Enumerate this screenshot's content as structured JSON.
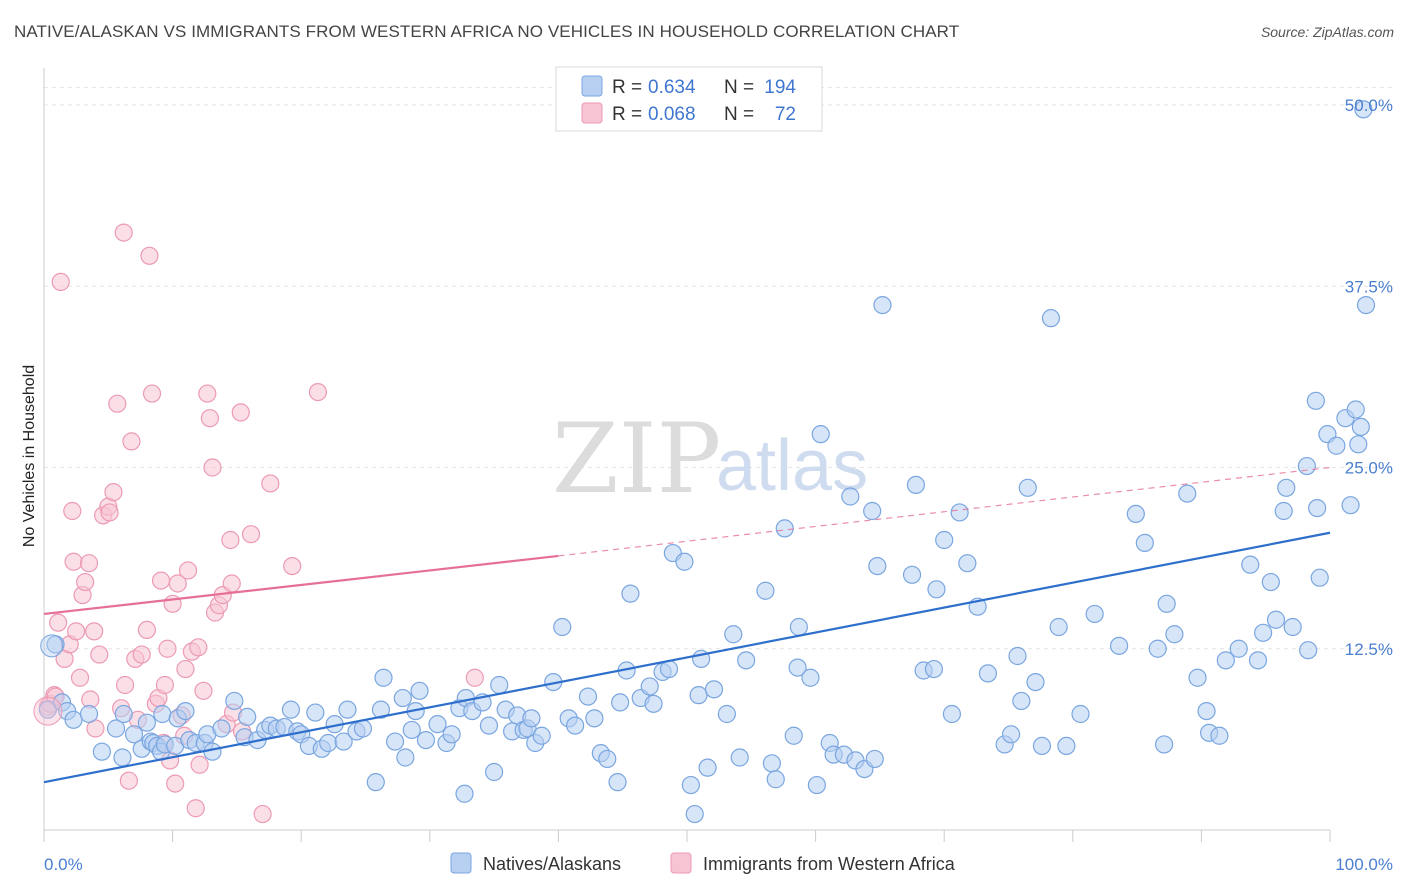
{
  "title": "NATIVE/ALASKAN VS IMMIGRANTS FROM WESTERN AFRICA NO VEHICLES IN HOUSEHOLD CORRELATION CHART",
  "source": "Source: ZipAtlas.com",
  "watermark": {
    "zip": "ZIP",
    "atlas": "atlas"
  },
  "legend": {
    "rows": [
      {
        "r_label": "R =",
        "r_value": "0.634",
        "n_label": "N =",
        "n_value": "194",
        "color": "#a8c8f0"
      },
      {
        "r_label": "R =",
        "r_value": "0.068",
        "n_label": "N =",
        "n_value": "72",
        "color": "#f5b8cc"
      }
    ]
  },
  "bottom_legend": [
    "Natives/Alaskans",
    "Immigrants from Western Africa"
  ],
  "chart_data": {
    "type": "scatter",
    "ylabel": "No Vehicles in Household",
    "xlabel": "",
    "xlim": [
      0,
      100
    ],
    "ylim": [
      0,
      52
    ],
    "x_tick_labels": [
      "0.0%",
      "100.0%"
    ],
    "y_ticks": [
      12.5,
      25.0,
      37.5,
      50.0
    ],
    "y_tick_labels": [
      "12.5%",
      "25.0%",
      "37.5%",
      "50.0%"
    ],
    "grid": true,
    "colors": {
      "blue_fill": "#b7d0f2",
      "blue_stroke": "#7aa6e0",
      "blue_line": "#2f6fcc",
      "pink_fill": "#f7c4d4",
      "pink_stroke": "#ec9ab4",
      "pink_line": "#e56f96"
    },
    "series": [
      {
        "name": "Natives/Alaskans",
        "trend": {
          "x0": 0,
          "y0": 3.3,
          "x1": 100,
          "y1": 20.5
        },
        "points": [
          [
            0.3,
            8.3
          ],
          [
            0.9,
            12.8
          ],
          [
            1.4,
            8.8
          ],
          [
            1.8,
            8.2
          ],
          [
            2.3,
            7.6
          ],
          [
            3.5,
            8.0
          ],
          [
            4.5,
            5.4
          ],
          [
            5.6,
            7.0
          ],
          [
            6.1,
            5.0
          ],
          [
            6.2,
            8.0
          ],
          [
            7.0,
            6.6
          ],
          [
            7.6,
            5.6
          ],
          [
            8.0,
            7.4
          ],
          [
            8.3,
            6.1
          ],
          [
            8.5,
            6.0
          ],
          [
            8.8,
            5.8
          ],
          [
            9.1,
            5.4
          ],
          [
            9.2,
            8.0
          ],
          [
            9.4,
            5.9
          ],
          [
            10.2,
            5.8
          ],
          [
            10.4,
            7.7
          ],
          [
            11.0,
            8.2
          ],
          [
            11.3,
            6.2
          ],
          [
            11.8,
            6.0
          ],
          [
            12.5,
            6.0
          ],
          [
            12.7,
            6.6
          ],
          [
            13.1,
            5.4
          ],
          [
            13.8,
            7.0
          ],
          [
            14.8,
            8.9
          ],
          [
            15.6,
            6.4
          ],
          [
            15.8,
            7.8
          ],
          [
            16.6,
            6.2
          ],
          [
            17.2,
            6.9
          ],
          [
            17.6,
            7.2
          ],
          [
            18.1,
            7.0
          ],
          [
            18.7,
            7.1
          ],
          [
            19.2,
            8.3
          ],
          [
            19.7,
            6.8
          ],
          [
            20.0,
            6.6
          ],
          [
            20.6,
            5.8
          ],
          [
            21.1,
            8.1
          ],
          [
            21.6,
            5.6
          ],
          [
            22.1,
            6.0
          ],
          [
            22.6,
            7.3
          ],
          [
            23.3,
            6.1
          ],
          [
            23.6,
            8.3
          ],
          [
            24.3,
            6.8
          ],
          [
            24.8,
            7.0
          ],
          [
            25.8,
            3.3
          ],
          [
            26.2,
            8.3
          ],
          [
            26.4,
            10.5
          ],
          [
            27.3,
            6.1
          ],
          [
            27.9,
            9.1
          ],
          [
            28.1,
            5.0
          ],
          [
            28.6,
            6.9
          ],
          [
            28.9,
            8.2
          ],
          [
            29.2,
            9.6
          ],
          [
            29.7,
            6.2
          ],
          [
            30.6,
            7.3
          ],
          [
            31.3,
            6.0
          ],
          [
            31.7,
            6.6
          ],
          [
            32.3,
            8.4
          ],
          [
            32.7,
            2.5
          ],
          [
            32.8,
            9.1
          ],
          [
            33.3,
            8.2
          ],
          [
            34.1,
            8.8
          ],
          [
            34.6,
            7.2
          ],
          [
            35.0,
            4.0
          ],
          [
            35.4,
            10.0
          ],
          [
            35.9,
            8.3
          ],
          [
            36.4,
            6.8
          ],
          [
            36.8,
            7.9
          ],
          [
            37.3,
            6.9
          ],
          [
            37.6,
            7.0
          ],
          [
            37.9,
            7.7
          ],
          [
            38.2,
            6.0
          ],
          [
            38.7,
            6.5
          ],
          [
            39.6,
            10.2
          ],
          [
            40.3,
            14.0
          ],
          [
            40.8,
            7.7
          ],
          [
            41.3,
            7.2
          ],
          [
            42.3,
            9.2
          ],
          [
            42.8,
            7.7
          ],
          [
            43.3,
            5.3
          ],
          [
            43.8,
            4.9
          ],
          [
            44.6,
            3.3
          ],
          [
            44.8,
            8.8
          ],
          [
            45.3,
            11.0
          ],
          [
            45.6,
            16.3
          ],
          [
            46.4,
            9.1
          ],
          [
            47.1,
            9.9
          ],
          [
            47.4,
            8.7
          ],
          [
            48.1,
            10.9
          ],
          [
            48.6,
            11.1
          ],
          [
            48.9,
            19.1
          ],
          [
            49.8,
            18.5
          ],
          [
            50.3,
            3.1
          ],
          [
            50.6,
            1.1
          ],
          [
            50.9,
            9.3
          ],
          [
            51.1,
            11.8
          ],
          [
            51.6,
            4.3
          ],
          [
            52.1,
            9.7
          ],
          [
            53.1,
            8.0
          ],
          [
            53.6,
            13.5
          ],
          [
            54.1,
            5.0
          ],
          [
            54.6,
            11.7
          ],
          [
            56.1,
            16.5
          ],
          [
            56.6,
            4.6
          ],
          [
            56.9,
            3.5
          ],
          [
            57.6,
            20.8
          ],
          [
            58.3,
            6.5
          ],
          [
            58.6,
            11.2
          ],
          [
            58.7,
            14.0
          ],
          [
            59.6,
            10.5
          ],
          [
            60.1,
            3.1
          ],
          [
            60.4,
            27.3
          ],
          [
            61.1,
            6.0
          ],
          [
            61.4,
            5.2
          ],
          [
            62.2,
            5.2
          ],
          [
            62.7,
            23.0
          ],
          [
            63.1,
            4.8
          ],
          [
            63.8,
            4.2
          ],
          [
            64.4,
            22.0
          ],
          [
            64.6,
            4.9
          ],
          [
            64.8,
            18.2
          ],
          [
            65.2,
            36.2
          ],
          [
            67.5,
            17.6
          ],
          [
            67.8,
            23.8
          ],
          [
            68.4,
            11.0
          ],
          [
            69.2,
            11.1
          ],
          [
            69.4,
            16.6
          ],
          [
            70.0,
            20.0
          ],
          [
            70.6,
            8.0
          ],
          [
            71.2,
            21.9
          ],
          [
            71.8,
            18.4
          ],
          [
            72.6,
            15.4
          ],
          [
            73.4,
            10.8
          ],
          [
            74.7,
            5.9
          ],
          [
            75.2,
            6.6
          ],
          [
            75.7,
            12.0
          ],
          [
            76.0,
            8.9
          ],
          [
            76.5,
            23.6
          ],
          [
            77.1,
            10.2
          ],
          [
            77.6,
            5.8
          ],
          [
            78.3,
            35.3
          ],
          [
            78.9,
            14.0
          ],
          [
            79.5,
            5.8
          ],
          [
            80.6,
            8.0
          ],
          [
            81.7,
            14.9
          ],
          [
            83.6,
            12.7
          ],
          [
            84.9,
            21.8
          ],
          [
            85.6,
            19.8
          ],
          [
            86.6,
            12.5
          ],
          [
            87.1,
            5.9
          ],
          [
            87.3,
            15.6
          ],
          [
            87.9,
            13.5
          ],
          [
            88.9,
            23.2
          ],
          [
            89.7,
            10.5
          ],
          [
            90.4,
            8.2
          ],
          [
            90.6,
            6.7
          ],
          [
            91.4,
            6.5
          ],
          [
            91.9,
            11.7
          ],
          [
            92.9,
            12.5
          ],
          [
            93.8,
            18.3
          ],
          [
            94.4,
            11.7
          ],
          [
            94.8,
            13.6
          ],
          [
            95.4,
            17.1
          ],
          [
            95.8,
            14.5
          ],
          [
            96.4,
            22.0
          ],
          [
            96.6,
            23.6
          ],
          [
            97.1,
            14.0
          ],
          [
            98.2,
            25.1
          ],
          [
            98.9,
            29.6
          ],
          [
            98.3,
            12.4
          ],
          [
            99.0,
            22.2
          ],
          [
            99.2,
            17.4
          ],
          [
            99.8,
            27.3
          ],
          [
            100.5,
            26.5
          ],
          [
            101.2,
            28.4
          ],
          [
            101.6,
            22.4
          ],
          [
            102.0,
            29.0
          ],
          [
            102.2,
            26.6
          ],
          [
            102.4,
            27.8
          ],
          [
            102.6,
            49.7
          ],
          [
            102.8,
            36.2
          ]
        ]
      },
      {
        "name": "Immigrants from Western Africa",
        "trend": {
          "x0": 0,
          "y0": 14.9,
          "x1": 40,
          "y1": 18.9,
          "dash_x1": 100,
          "dash_y1": 25.0
        },
        "points": [
          [
            0.3,
            8.5
          ],
          [
            0.5,
            8.7
          ],
          [
            0.8,
            9.3
          ],
          [
            1.1,
            14.3
          ],
          [
            1.3,
            37.8
          ],
          [
            1.6,
            11.8
          ],
          [
            2.0,
            12.8
          ],
          [
            2.2,
            22.0
          ],
          [
            2.3,
            18.5
          ],
          [
            2.5,
            13.7
          ],
          [
            2.8,
            10.5
          ],
          [
            3.0,
            16.2
          ],
          [
            3.2,
            17.1
          ],
          [
            3.5,
            18.4
          ],
          [
            3.6,
            9.0
          ],
          [
            3.9,
            13.7
          ],
          [
            4.3,
            12.1
          ],
          [
            4.6,
            21.7
          ],
          [
            5.0,
            22.3
          ],
          [
            5.1,
            21.9
          ],
          [
            5.4,
            23.3
          ],
          [
            5.7,
            29.4
          ],
          [
            6.2,
            41.2
          ],
          [
            6.3,
            10.0
          ],
          [
            6.6,
            3.4
          ],
          [
            6.8,
            26.8
          ],
          [
            7.1,
            11.8
          ],
          [
            7.3,
            7.6
          ],
          [
            7.6,
            12.1
          ],
          [
            8.0,
            13.8
          ],
          [
            8.2,
            39.6
          ],
          [
            8.4,
            30.1
          ],
          [
            8.7,
            8.7
          ],
          [
            8.9,
            9.1
          ],
          [
            9.1,
            17.2
          ],
          [
            9.4,
            10.0
          ],
          [
            9.6,
            12.5
          ],
          [
            9.8,
            4.8
          ],
          [
            10.0,
            15.6
          ],
          [
            10.2,
            3.2
          ],
          [
            10.4,
            17.0
          ],
          [
            10.7,
            7.9
          ],
          [
            11.0,
            11.1
          ],
          [
            11.2,
            17.9
          ],
          [
            11.5,
            12.3
          ],
          [
            11.8,
            1.5
          ],
          [
            12.0,
            12.6
          ],
          [
            12.4,
            9.6
          ],
          [
            12.7,
            30.1
          ],
          [
            12.9,
            28.4
          ],
          [
            13.1,
            25.0
          ],
          [
            13.3,
            15.0
          ],
          [
            13.6,
            15.5
          ],
          [
            13.9,
            16.2
          ],
          [
            14.2,
            7.3
          ],
          [
            14.5,
            20.0
          ],
          [
            14.6,
            17.0
          ],
          [
            15.3,
            28.8
          ],
          [
            16.1,
            20.4
          ],
          [
            17.0,
            1.1
          ],
          [
            17.6,
            23.9
          ],
          [
            19.3,
            18.2
          ],
          [
            21.3,
            30.2
          ],
          [
            33.5,
            10.5
          ],
          [
            0.9,
            9.2
          ],
          [
            4.0,
            7.0
          ],
          [
            6.0,
            8.4
          ],
          [
            9.3,
            6.0
          ],
          [
            10.9,
            6.5
          ],
          [
            12.1,
            4.5
          ],
          [
            14.7,
            8.1
          ],
          [
            15.4,
            6.8
          ]
        ]
      }
    ]
  }
}
